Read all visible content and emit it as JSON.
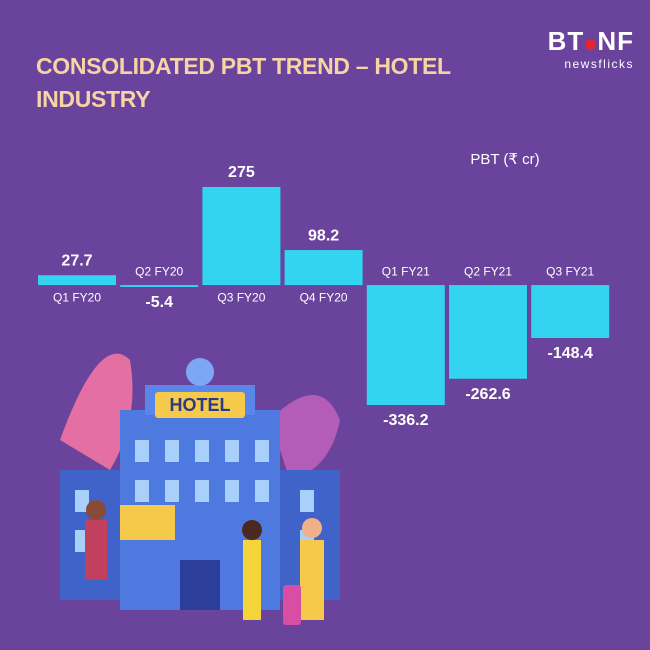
{
  "logo": {
    "left": "BT",
    "right": "NF",
    "tagline": "newsflicks"
  },
  "illustration": {
    "sign": "HOTEL"
  },
  "chart_data": {
    "type": "bar",
    "title": "CONSOLIDATED PBT TREND – HOTEL INDUSTRY",
    "y_label": "PBT (₹ cr)",
    "categories": [
      "Q1 FY20",
      "Q2 FY20",
      "Q3 FY20",
      "Q4 FY20",
      "Q1 FY21",
      "Q2 FY21",
      "Q3 FY21"
    ],
    "values": [
      27.7,
      -5.4,
      275,
      98.2,
      -336.2,
      -262.6,
      -148.4
    ],
    "color": "#33d4f0"
  }
}
